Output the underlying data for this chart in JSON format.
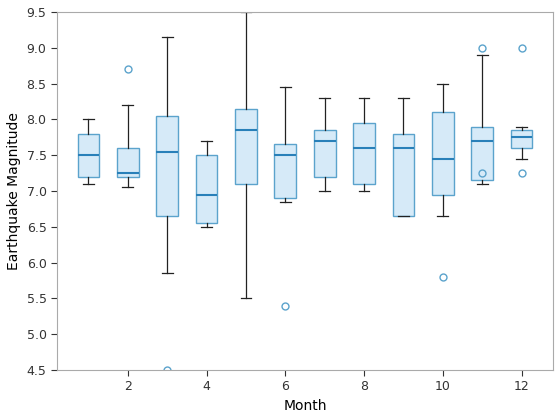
{
  "months": [
    1,
    2,
    3,
    4,
    5,
    6,
    7,
    8,
    9,
    10,
    11,
    12
  ],
  "boxes": [
    {
      "whislo": 7.1,
      "q1": 7.2,
      "med": 7.5,
      "q3": 7.8,
      "whishi": 8.0,
      "fliers": []
    },
    {
      "whislo": 7.05,
      "q1": 7.2,
      "med": 7.25,
      "q3": 7.6,
      "whishi": 8.2,
      "fliers": [
        8.7
      ]
    },
    {
      "whislo": 5.85,
      "q1": 6.65,
      "med": 7.55,
      "q3": 8.05,
      "whishi": 9.15,
      "fliers": [
        4.5
      ]
    },
    {
      "whislo": 6.5,
      "q1": 6.55,
      "med": 6.95,
      "q3": 7.5,
      "whishi": 7.7,
      "fliers": []
    },
    {
      "whislo": 5.5,
      "q1": 7.1,
      "med": 7.85,
      "q3": 8.15,
      "whishi": 9.5,
      "fliers": []
    },
    {
      "whislo": 6.85,
      "q1": 6.9,
      "med": 7.5,
      "q3": 7.65,
      "whishi": 8.45,
      "fliers": [
        5.4
      ]
    },
    {
      "whislo": 7.0,
      "q1": 7.2,
      "med": 7.7,
      "q3": 7.85,
      "whishi": 8.3,
      "fliers": []
    },
    {
      "whislo": 7.0,
      "q1": 7.1,
      "med": 7.6,
      "q3": 7.95,
      "whishi": 8.3,
      "fliers": []
    },
    {
      "whislo": 6.65,
      "q1": 6.65,
      "med": 7.6,
      "q3": 7.8,
      "whishi": 8.3,
      "fliers": []
    },
    {
      "whislo": 6.65,
      "q1": 6.95,
      "med": 7.45,
      "q3": 8.1,
      "whishi": 8.5,
      "fliers": [
        5.8
      ]
    },
    {
      "whislo": 7.1,
      "q1": 7.15,
      "med": 7.7,
      "q3": 7.9,
      "whishi": 8.9,
      "fliers": [
        9.0,
        7.25
      ]
    },
    {
      "whislo": 7.45,
      "q1": 7.6,
      "med": 7.75,
      "q3": 7.85,
      "whishi": 7.9,
      "fliers": [
        9.0,
        7.25
      ]
    }
  ],
  "xlim": [
    0.2,
    12.8
  ],
  "ylim": [
    4.5,
    9.5
  ],
  "xlabel": "Month",
  "ylabel": "Earthquake Magnitude",
  "box_facecolor": "#d6eaf8",
  "box_edgecolor": "#5ba3cc",
  "median_color": "#2980b9",
  "whisker_color": "#222222",
  "cap_color": "#222222",
  "flier_color": "#5ba3cc",
  "xticks": [
    2,
    4,
    6,
    8,
    10,
    12
  ],
  "yticks": [
    4.5,
    5.0,
    5.5,
    6.0,
    6.5,
    7.0,
    7.5,
    8.0,
    8.5,
    9.0,
    9.5
  ],
  "figsize": [
    5.6,
    4.2
  ],
  "dpi": 100
}
